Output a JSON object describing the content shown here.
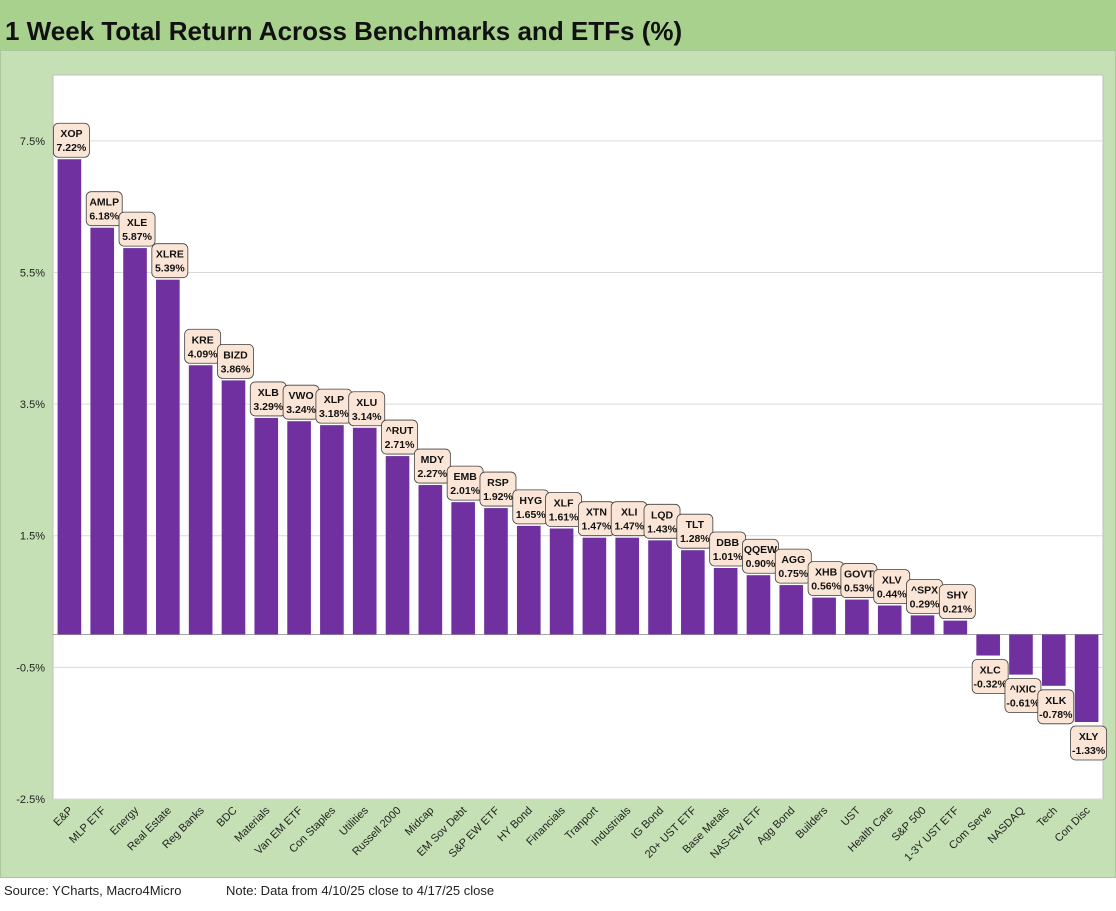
{
  "title": "1 Week Total Return Across Benchmarks and ETFs (%)",
  "footer": {
    "source": "Source: YCharts, Macro4Micro",
    "note": "Note: Data from 4/10/25 close to 4/17/25 close"
  },
  "colors": {
    "title_bg": "#a9d18e",
    "frame_bg": "#c5e0b4",
    "bar": "#7030a0",
    "label_bg": "#fbe5d6"
  },
  "chart_data": {
    "type": "bar",
    "title": "1 Week Total Return Across Benchmarks and ETFs (%)",
    "xlabel": "",
    "ylabel": "",
    "ylim": [
      -2.5,
      8.5
    ],
    "yticks": [
      7.5,
      5.5,
      3.5,
      1.5,
      -0.5,
      -2.5
    ],
    "ytick_labels": [
      "7.5%",
      "5.5%",
      "3.5%",
      "1.5%",
      "-0.5%",
      "-2.5%"
    ],
    "grid": true,
    "legend": "none",
    "categories": [
      "E&P",
      "MLP ETF",
      "Energy",
      "Real Estate",
      "Reg Banks",
      "BDC",
      "Materials",
      "Van EM ETF",
      "Con Staples",
      "Utilities",
      "Russell 2000",
      "Midcap",
      "EM Sov Debt",
      "S&P EW ETF",
      "HY Bond",
      "Financials",
      "Tranport",
      "Industrials",
      "IG Bond",
      "20+ UST ETF",
      "Base Metals",
      "NAS-EW ETF",
      "Agg Bond",
      "Builders",
      "UST",
      "Health Care",
      "S&P 500",
      "1-3Y UST ETF",
      "Com Serve",
      "NASDAQ",
      "Tech",
      "Con Disc"
    ],
    "tickers": [
      "XOP",
      "AMLP",
      "XLE",
      "XLRE",
      "KRE",
      "BIZD",
      "XLB",
      "VWO",
      "XLP",
      "XLU",
      "^RUT",
      "MDY",
      "EMB",
      "RSP",
      "HYG",
      "XLF",
      "XTN",
      "XLI",
      "LQD",
      "TLT",
      "DBB",
      "QQEW",
      "AGG",
      "XHB",
      "GOVT",
      "XLV",
      "^SPX",
      "SHY",
      "XLC",
      "^IXIC",
      "XLK",
      "XLY"
    ],
    "value_labels": [
      "7.22%",
      "6.18%",
      "5.87%",
      "5.39%",
      "4.09%",
      "3.86%",
      "3.29%",
      "3.24%",
      "3.18%",
      "3.14%",
      "2.71%",
      "2.27%",
      "2.01%",
      "1.92%",
      "1.65%",
      "1.61%",
      "1.47%",
      "1.47%",
      "1.43%",
      "1.28%",
      "1.01%",
      "0.90%",
      "0.75%",
      "0.56%",
      "0.53%",
      "0.44%",
      "0.29%",
      "0.21%",
      "-0.32%",
      "-0.61%",
      "-0.78%",
      "-1.33%"
    ],
    "values": [
      7.22,
      6.18,
      5.87,
      5.39,
      4.09,
      3.86,
      3.29,
      3.24,
      3.18,
      3.14,
      2.71,
      2.27,
      2.01,
      1.92,
      1.65,
      1.61,
      1.47,
      1.47,
      1.43,
      1.28,
      1.01,
      0.9,
      0.75,
      0.56,
      0.53,
      0.44,
      0.29,
      0.21,
      -0.32,
      -0.61,
      -0.78,
      -1.33
    ]
  }
}
